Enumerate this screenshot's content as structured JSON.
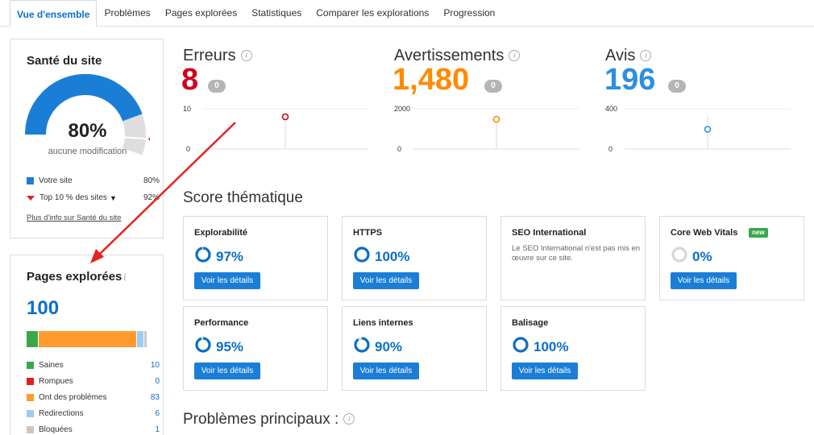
{
  "tabs": [
    {
      "label": "Vue d'ensemble",
      "active": true
    },
    {
      "label": "Problèmes"
    },
    {
      "label": "Pages explorées"
    },
    {
      "label": "Statistiques"
    },
    {
      "label": "Comparer les explorations"
    },
    {
      "label": "Progression"
    }
  ],
  "health": {
    "title": "Santé du site",
    "percent": "80%",
    "percent_value": 0.8,
    "subtitle": "aucune modification",
    "legend": [
      {
        "label": "Votre site",
        "value": "80%",
        "color": "#1a7ed6"
      },
      {
        "label": "Top 10 % des sites",
        "value": "92%",
        "color": "#e02020"
      }
    ],
    "link": "Plus d'info sur Santé du site"
  },
  "pages": {
    "title": "Pages explorées",
    "info": "i",
    "total": "100",
    "rows": [
      {
        "label": "Saines",
        "value": "10",
        "count": 10,
        "color": "#3aa84a"
      },
      {
        "label": "Rompues",
        "value": "0",
        "count": 0,
        "color": "#e02020"
      },
      {
        "label": "Ont des problèmes",
        "value": "83",
        "count": 83,
        "color": "#ff9a2e"
      },
      {
        "label": "Redirections",
        "value": "6",
        "count": 6,
        "color": "#9ecbf0"
      },
      {
        "label": "Bloquées",
        "value": "1",
        "count": 1,
        "color": "#c8c8c8"
      }
    ]
  },
  "metrics": [
    {
      "title": "Erreurs",
      "value": "8",
      "badge": "0",
      "color": "#d0021b",
      "ymax": "10",
      "ymin": "0",
      "point": 8,
      "max": 10
    },
    {
      "title": "Avertissements",
      "value": "1,480",
      "badge": "0",
      "color": "#ff8a00",
      "ymax": "2000",
      "ymin": "0",
      "point": 1480,
      "max": 2000
    },
    {
      "title": "Avis",
      "value": "196",
      "badge": "0",
      "color": "#2d8fe0",
      "ymax": "400",
      "ymin": "0",
      "point": 196,
      "max": 400
    }
  ],
  "score": {
    "title": "Score thématique",
    "cards": [
      {
        "name": "Explorabilité",
        "score": "97%",
        "fraction": 0.97,
        "button": "Voir les détails"
      },
      {
        "name": "HTTPS",
        "score": "100%",
        "fraction": 1.0,
        "button": "Voir les détails"
      },
      {
        "name": "SEO International",
        "desc": "Le SEO International n'est pas mis en œuvre sur ce site."
      },
      {
        "name": "Core Web Vitals",
        "badge": "new",
        "score": "0%",
        "fraction": 0.0,
        "button": "Voir les détails"
      },
      {
        "name": "Performance",
        "score": "95%",
        "fraction": 0.95,
        "button": "Voir les détails"
      },
      {
        "name": "Liens internes",
        "score": "90%",
        "fraction": 0.9,
        "button": "Voir les détails"
      },
      {
        "name": "Balisage",
        "score": "100%",
        "fraction": 1.0,
        "button": "Voir les détails"
      }
    ]
  },
  "problems": {
    "title": "Problèmes principaux :"
  },
  "colors": {
    "accent": "#1a7ed6",
    "arrow": "#e8231d"
  }
}
